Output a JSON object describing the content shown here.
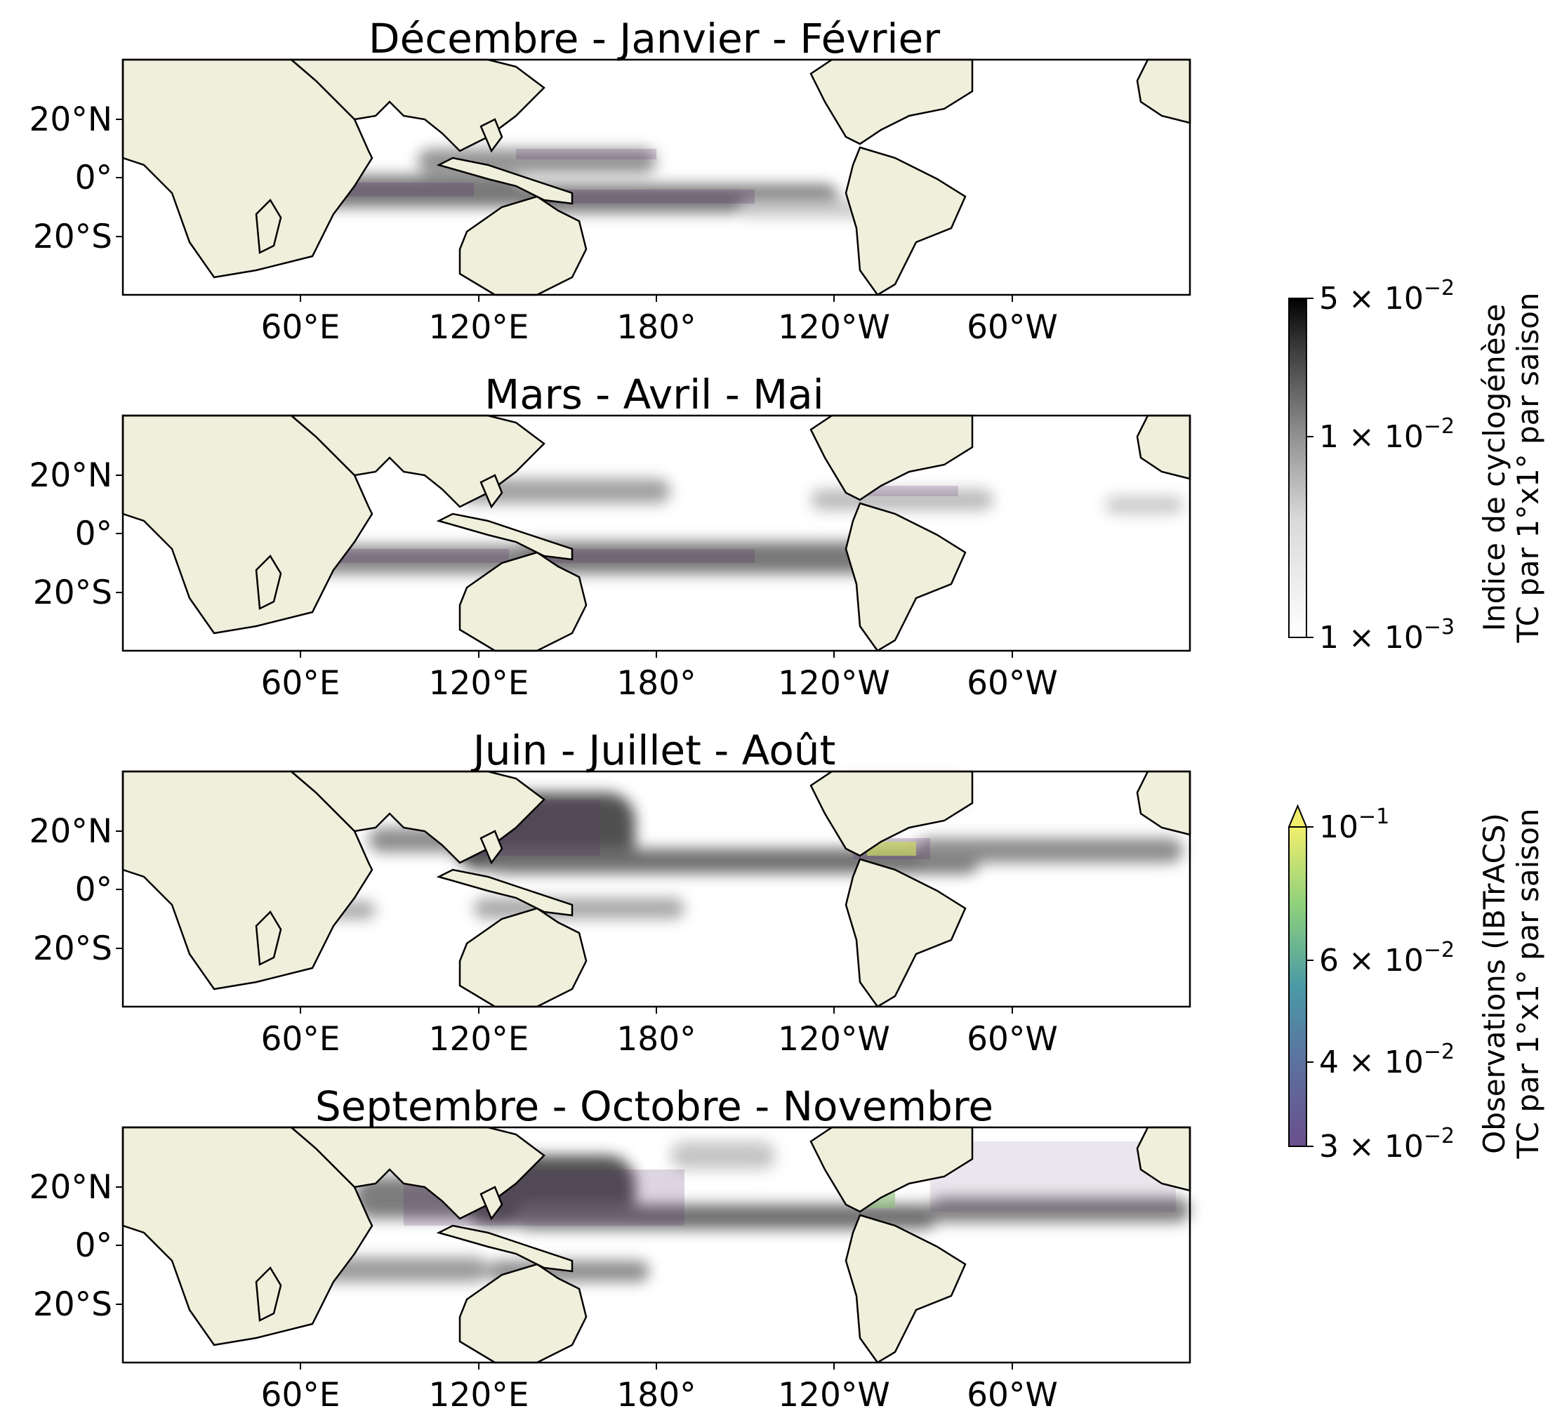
{
  "figure": {
    "panels": [
      {
        "key": "djf",
        "title": "Décembre - Janvier - Février",
        "season": "DJF"
      },
      {
        "key": "mam",
        "title": "Mars - Avril - Mai",
        "season": "MAM"
      },
      {
        "key": "jja",
        "title": "Juin - Juillet - Août",
        "season": "JJA"
      },
      {
        "key": "son",
        "title": "Septembre - Octobre - Novembre",
        "season": "SON"
      }
    ],
    "lon_ticks": [
      "60°E",
      "120°E",
      "180°",
      "120°W",
      "60°W"
    ],
    "lat_ticks": [
      "20°N",
      "0°",
      "20°S"
    ],
    "map_extent": {
      "lon_start": 0,
      "lon_span": 360,
      "lat_min": -40,
      "lat_max": 40
    },
    "colors": {
      "land": "#efefdb",
      "coast": "#000000",
      "ocean": "#ffffff"
    }
  },
  "colorbars": {
    "index": {
      "label_line1": "Indice de cyclogénèse",
      "label_line2": "TC par 1°x1° par saison",
      "ticks": [
        {
          "mantissa": "5",
          "exp": "−2",
          "value": 0.05
        },
        {
          "mantissa": "1",
          "exp": "−2",
          "value": 0.01
        },
        {
          "mantissa": "1",
          "exp": "−3",
          "value": 0.001
        }
      ],
      "range": [
        0.001,
        0.05
      ],
      "scale": "log",
      "colormap": "Greys"
    },
    "obs": {
      "label_line1": "Observations (IBTrACS)",
      "label_line2": "TC par 1°x1° par saison",
      "ticks": [
        {
          "mantissa": "",
          "exp": "−1",
          "value": 0.1
        },
        {
          "mantissa": "6",
          "exp": "−2",
          "value": 0.06
        },
        {
          "mantissa": "4",
          "exp": "−2",
          "value": 0.04
        },
        {
          "mantissa": "3",
          "exp": "−2",
          "value": 0.03
        }
      ],
      "range": [
        0.03,
        0.1
      ],
      "scale": "log",
      "colormap": "viridis",
      "extend": "max"
    }
  }
}
